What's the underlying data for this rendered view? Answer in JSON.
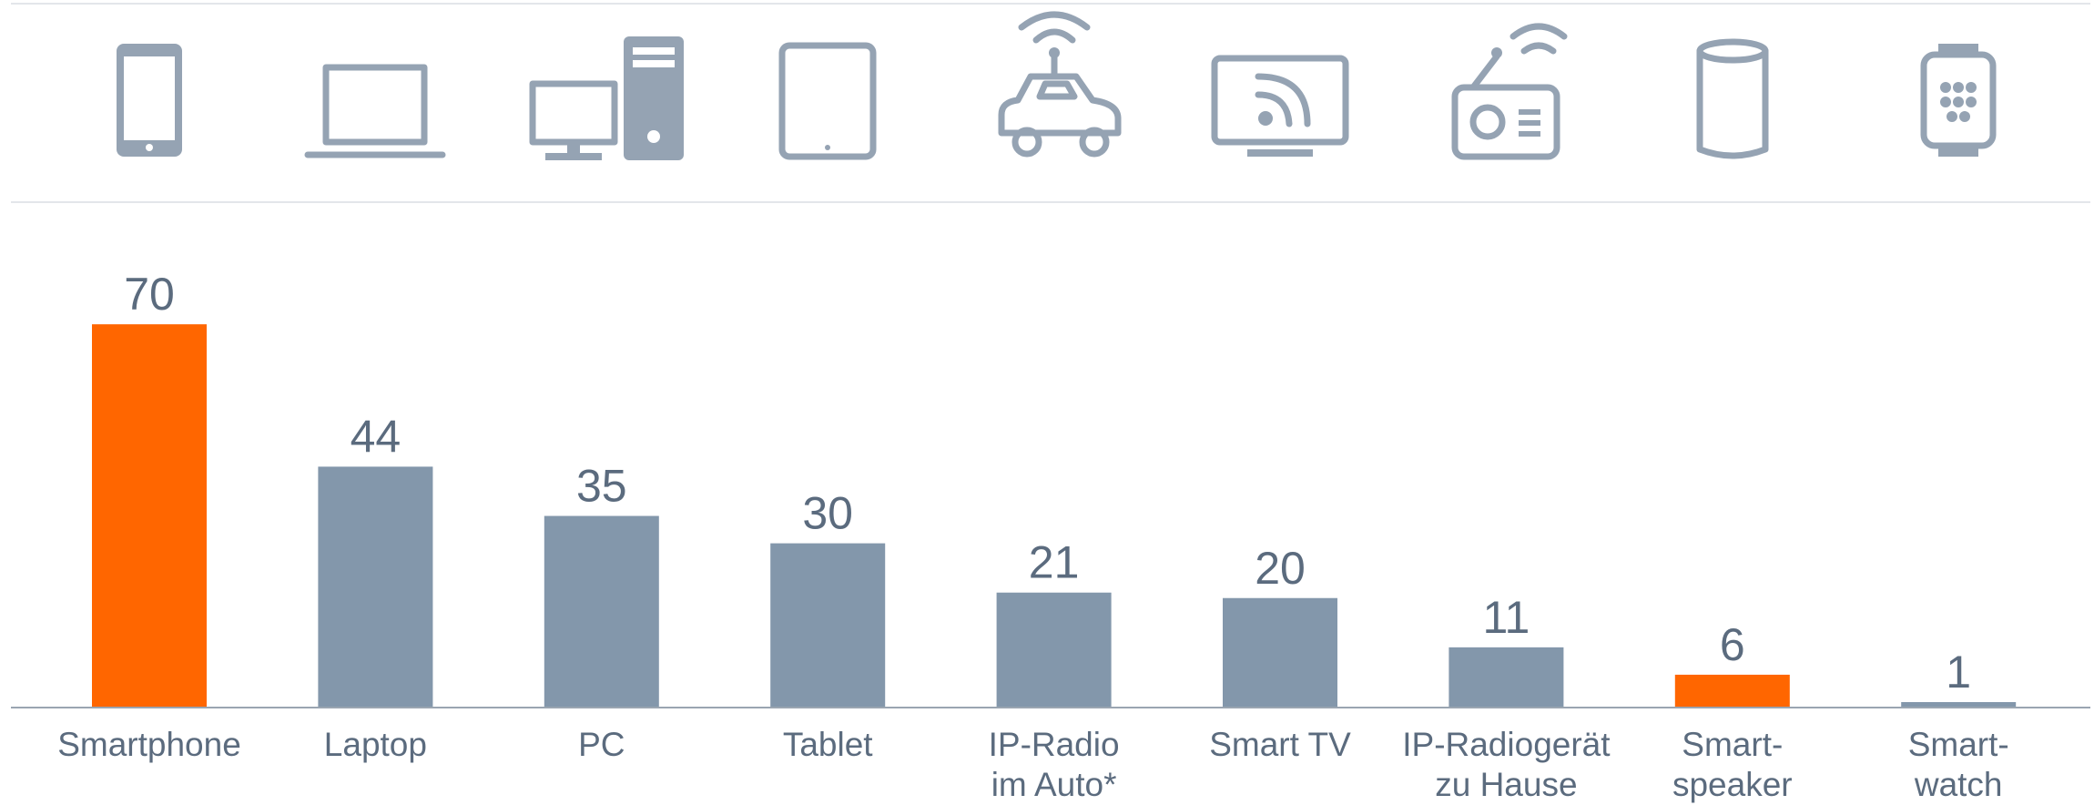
{
  "chart_data": {
    "type": "bar",
    "categories": [
      "Smartphone",
      "Laptop",
      "PC",
      "Tablet",
      "IP-Radio\nim Auto*",
      "Smart TV",
      "IP-Radiogerät\nzu Hause",
      "Smart-\nspeaker",
      "Smart-\nwatch"
    ],
    "values": [
      70,
      44,
      35,
      30,
      21,
      20,
      11,
      6,
      1
    ],
    "colors": [
      "#ff6600",
      "#8397ab",
      "#8397ab",
      "#8397ab",
      "#8397ab",
      "#8397ab",
      "#8397ab",
      "#ff6600",
      "#8397ab"
    ],
    "ylim": [
      0,
      80
    ]
  }
}
